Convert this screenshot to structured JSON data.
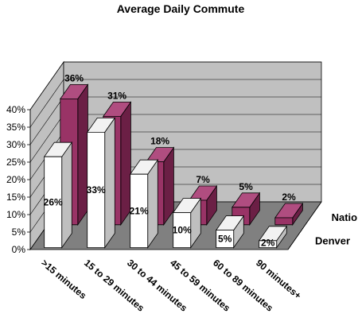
{
  "chart_data": {
    "type": "bar",
    "title": "Average Daily Commute",
    "categories": [
      ">15 minutes",
      "15 to 29 minutes",
      "30 to 44 minutes",
      "45 to 59 minutes",
      "60 to 89 minutes",
      "90 minutes+"
    ],
    "series": [
      {
        "name": "Nation",
        "values": [
          36,
          31,
          18,
          7,
          5,
          2
        ],
        "color": "#993366"
      },
      {
        "name": "Denver",
        "values": [
          26,
          33,
          21,
          10,
          5,
          2
        ],
        "color": "#ffffff"
      }
    ],
    "y_ticks": [
      "0%",
      "5%",
      "10%",
      "15%",
      "20%",
      "25%",
      "30%",
      "35%",
      "40%"
    ],
    "ylim": [
      0,
      40
    ],
    "grid": true,
    "colors": {
      "wall": "#c0c0c0",
      "floor": "#808080",
      "nation": "#993366",
      "denver": "#ffffff"
    }
  }
}
